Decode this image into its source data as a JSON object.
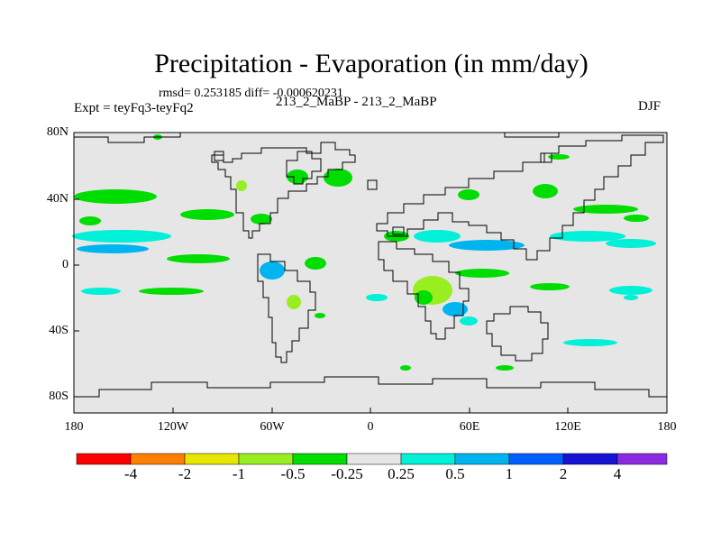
{
  "title": "Precipitation - Evaporation (in mm/day)",
  "stats": "rmsd= 0.253185 diff= -0.000620231",
  "expt_left": "Expt = teyFq3-teyFq2",
  "expt_center": "213_2_MaBP - 213_2_MaBP",
  "season": "DJF",
  "axes": {
    "y_ticks": [
      "80N",
      "40N",
      "0",
      "40S",
      "80S"
    ],
    "x_ticks": [
      "180",
      "120W",
      "60W",
      "0",
      "60E",
      "120E",
      "180"
    ]
  },
  "colorbar": {
    "colors": [
      "#ff0000",
      "#ff7f00",
      "#e6e600",
      "#99ee22",
      "#00dd00",
      "#e6e6e6",
      "#00f0d8",
      "#00b4f0",
      "#0060ff",
      "#1414d2",
      "#8a2be2"
    ],
    "labels": [
      "-4",
      "-2",
      "-1",
      "-0.5",
      "-0.25",
      "0.25",
      "0.5",
      "1",
      "2",
      "4"
    ]
  },
  "colors": {
    "background_field": "#e6e6e6",
    "coastline": "#000000"
  }
}
